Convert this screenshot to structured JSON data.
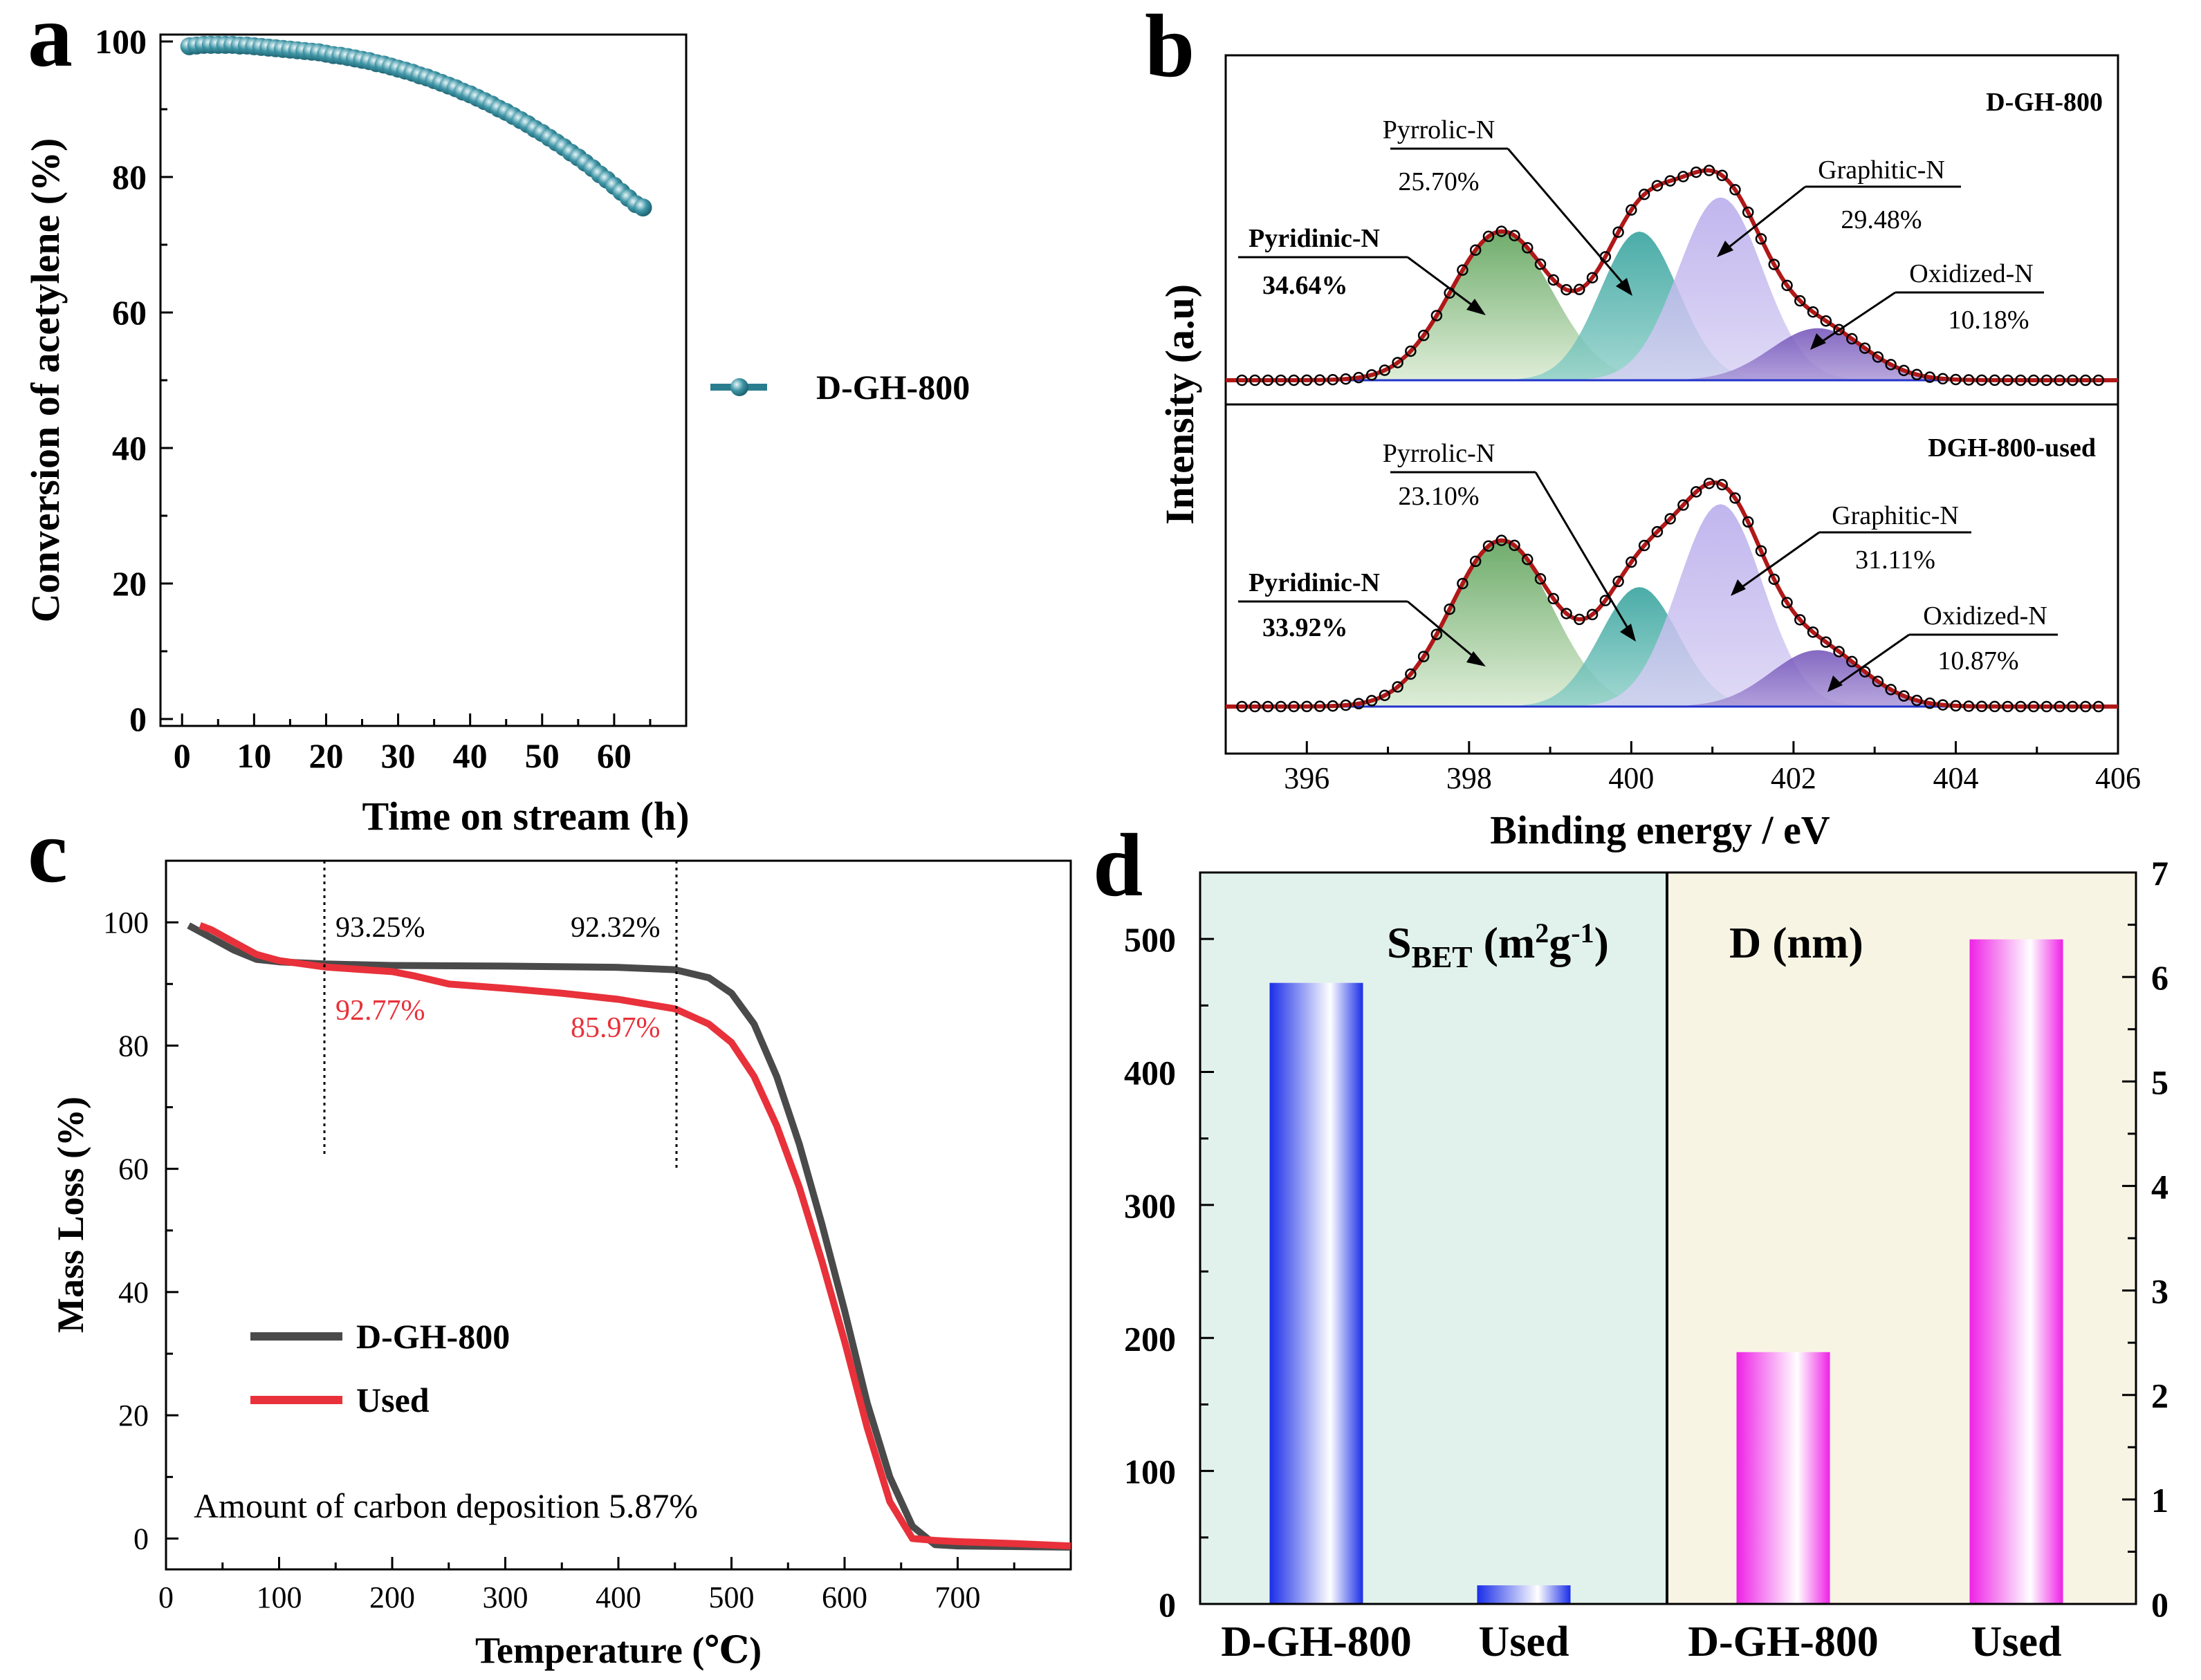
{
  "figure": {
    "panel_labels": [
      "a",
      "b",
      "c",
      "d"
    ]
  },
  "chart_data": [
    {
      "panel": "a",
      "type": "line",
      "xlabel": "Time on stream (h)",
      "ylabel": "Conversion of acetylene (%)",
      "xlim": [
        -3,
        70
      ],
      "ylim": [
        0,
        100
      ],
      "xticks": [
        0,
        10,
        20,
        30,
        40,
        50,
        60
      ],
      "yticks": [
        0,
        20,
        40,
        60,
        80,
        100
      ],
      "legend": {
        "position": "right-middle"
      },
      "series": [
        {
          "name": "D-GH-800",
          "color": "#2a7d8e",
          "x": [
            1,
            2,
            3,
            4,
            5,
            6,
            7,
            8,
            9,
            10,
            11,
            12,
            13,
            14,
            15,
            16,
            17,
            18,
            19,
            20,
            21,
            22,
            23,
            24,
            25,
            26,
            27,
            28,
            29,
            30,
            31,
            32,
            33,
            34,
            35,
            36,
            37,
            38,
            39,
            40,
            41,
            42,
            43,
            44,
            45,
            46,
            47,
            48,
            49,
            50,
            51,
            52,
            53,
            54,
            55,
            56,
            57,
            58,
            59,
            60,
            61,
            62,
            63,
            64
          ],
          "y": [
            99.3,
            99.4,
            99.5,
            99.5,
            99.5,
            99.5,
            99.5,
            99.4,
            99.4,
            99.3,
            99.2,
            99.1,
            99.0,
            98.9,
            98.8,
            98.7,
            98.6,
            98.5,
            98.4,
            98.2,
            98.0,
            97.9,
            97.7,
            97.5,
            97.3,
            97.1,
            96.8,
            96.6,
            96.3,
            96.0,
            95.7,
            95.4,
            95.0,
            94.7,
            94.3,
            93.9,
            93.5,
            93.1,
            92.6,
            92.2,
            91.7,
            91.2,
            90.7,
            90.1,
            89.6,
            89.0,
            88.4,
            87.8,
            87.1,
            86.5,
            85.8,
            85.1,
            84.4,
            83.6,
            82.9,
            82.1,
            81.3,
            80.4,
            79.6,
            78.7,
            77.8,
            76.9,
            76.0,
            75.5
          ]
        }
      ]
    },
    {
      "panel": "b",
      "type": "line",
      "subtype": "XPS N1s deconvolution (two stacked subplots)",
      "xlabel": "Binding energy / eV",
      "ylabel": "Intensity (a.u)",
      "xlim": [
        395,
        406
      ],
      "xticks": [
        396,
        398,
        400,
        402,
        404,
        406
      ],
      "peak_centers_eV": {
        "Pyridinic-N": 398.4,
        "Pyrrolic-N": 400.1,
        "Graphitic-N": 401.1,
        "Oxidized-N": 402.3
      },
      "subplots": [
        {
          "title": "D-GH-800",
          "components": [
            {
              "name": "Pyridinic-N",
              "value": "34.64%",
              "center": 398.4,
              "height": 1.0,
              "color": "#6ea85a"
            },
            {
              "name": "Pyrrolic-N",
              "value": "25.70%",
              "center": 400.1,
              "height": 1.0,
              "color": "#2a9a93"
            },
            {
              "name": "Graphitic-N",
              "value": "29.48%",
              "center": 401.1,
              "height": 1.23,
              "color": "#b5a8e8"
            },
            {
              "name": "Oxidized-N",
              "value": "10.18%",
              "center": 402.3,
              "height": 0.35,
              "color": "#6a4bb0"
            }
          ]
        },
        {
          "title": "DGH-800-used",
          "components": [
            {
              "name": "Pyridinic-N",
              "value": "33.92%",
              "center": 398.4,
              "height": 1.0,
              "color": "#6ea85a"
            },
            {
              "name": "Pyrrolic-N",
              "value": "23.10%",
              "center": 400.1,
              "height": 0.72,
              "color": "#2a9a93"
            },
            {
              "name": "Graphitic-N",
              "value": "31.11%",
              "center": 401.1,
              "height": 1.22,
              "color": "#b5a8e8"
            },
            {
              "name": "Oxidized-N",
              "value": "10.87%",
              "center": 402.3,
              "height": 0.34,
              "color": "#6a4bb0"
            }
          ]
        }
      ]
    },
    {
      "panel": "c",
      "type": "line",
      "xlabel": "Temperature (℃)",
      "ylabel": "Mass Loss (%)",
      "xlim": [
        0,
        800
      ],
      "ylim": [
        -5,
        110
      ],
      "xticks": [
        0,
        100,
        200,
        300,
        400,
        500,
        600,
        700
      ],
      "yticks": [
        0,
        20,
        40,
        60,
        80,
        100
      ],
      "legend": {
        "position": "lower-left"
      },
      "annotation": "Amount of carbon deposition 5.87%",
      "marker_lines_x": [
        140,
        450
      ],
      "labels": [
        {
          "text": "93.25%",
          "series": "D-GH-800",
          "x": 145,
          "y": 93.25
        },
        {
          "text": "92.32%",
          "series": "D-GH-800",
          "x": 450,
          "y": 92.32
        },
        {
          "text": "92.77%",
          "series": "Used",
          "x": 145,
          "y": 92.77
        },
        {
          "text": "85.97%",
          "series": "Used",
          "x": 450,
          "y": 85.97
        }
      ],
      "series": [
        {
          "name": "D-GH-800",
          "color": "#4a4a4a",
          "x": [
            20,
            40,
            60,
            80,
            100,
            140,
            200,
            300,
            400,
            450,
            480,
            500,
            520,
            540,
            560,
            580,
            600,
            620,
            640,
            660,
            680,
            700,
            750,
            800
          ],
          "y": [
            99.5,
            97.5,
            95.5,
            94.0,
            93.6,
            93.25,
            93.0,
            92.9,
            92.7,
            92.32,
            91.0,
            88.5,
            83.5,
            75.0,
            64.0,
            51.0,
            37.0,
            22.0,
            10.0,
            2.0,
            -1.0,
            -1.2,
            -1.3,
            -1.4
          ]
        },
        {
          "name": "Used",
          "color": "#e8313a",
          "x": [
            30,
            40,
            60,
            80,
            100,
            140,
            200,
            220,
            250,
            300,
            350,
            400,
            450,
            480,
            500,
            520,
            540,
            560,
            580,
            600,
            620,
            640,
            660,
            680,
            700,
            750,
            800
          ],
          "y": [
            99.5,
            98.8,
            96.8,
            94.8,
            93.8,
            92.77,
            92.0,
            91.3,
            90.0,
            89.3,
            88.5,
            87.5,
            85.97,
            83.5,
            80.5,
            75.0,
            67.0,
            57.0,
            45.0,
            32.0,
            18.0,
            6.0,
            0.0,
            -0.3,
            -0.5,
            -0.8,
            -1.2
          ]
        }
      ]
    },
    {
      "panel": "d",
      "type": "bar",
      "categories_left": [
        "D-GH-800",
        "Used"
      ],
      "categories_right": [
        "D-GH-800",
        "Used"
      ],
      "left_axis": {
        "label": "SBET (m2g-1)",
        "ylim": [
          0,
          550
        ],
        "yticks": [
          0,
          100,
          200,
          300,
          400,
          500
        ]
      },
      "right_axis": {
        "label": "D (nm)",
        "ylim": [
          0,
          7
        ],
        "yticks": [
          0,
          1,
          2,
          3,
          4,
          5,
          6,
          7
        ]
      },
      "series": [
        {
          "name": "SBET",
          "unit": "m2/g",
          "axis": "left",
          "categories": [
            "D-GH-800",
            "Used"
          ],
          "values": [
            467,
            14
          ],
          "color": "#1a2ee8"
        },
        {
          "name": "D",
          "unit": "nm",
          "axis": "right",
          "categories": [
            "D-GH-800",
            "Used"
          ],
          "values": [
            2.41,
            6.36
          ],
          "color": "#ee22e6"
        }
      ],
      "background_colors": [
        "#e1f2ec",
        "#f8f4e4"
      ]
    }
  ]
}
